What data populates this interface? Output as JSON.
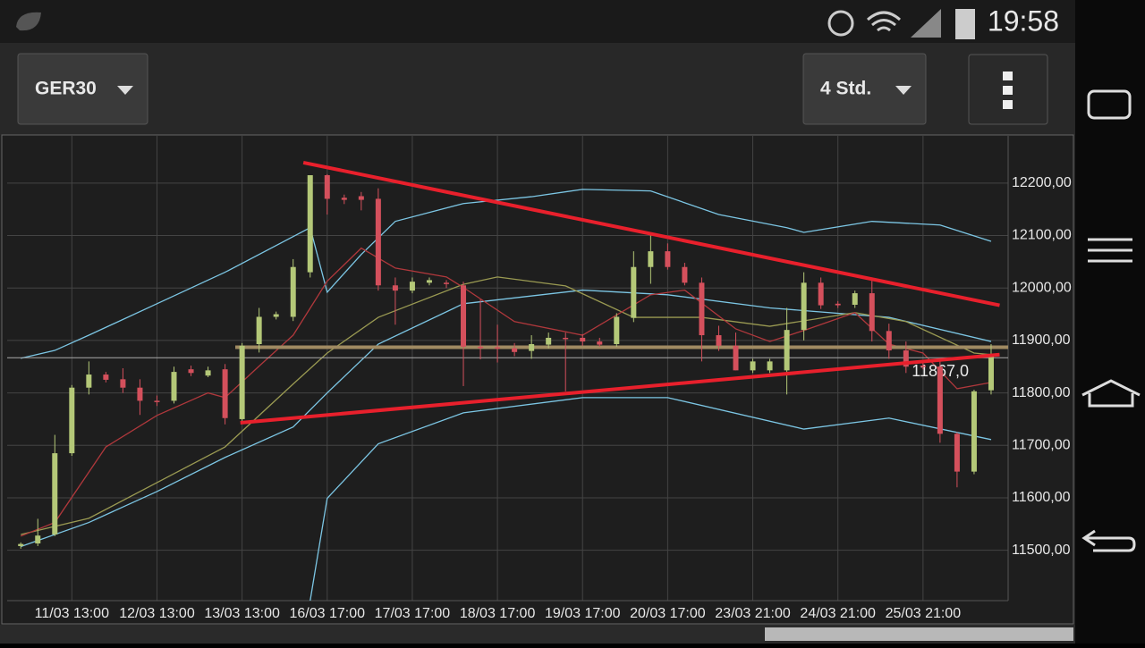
{
  "status_bar": {
    "time": "19:58"
  },
  "toolbar": {
    "symbol": "GER30",
    "timeframe": "4 Std."
  },
  "chart_data": {
    "type": "candlestick",
    "categories": [
      null,
      null,
      null,
      "11/03 13:00",
      null,
      null,
      null,
      null,
      "12/03 13:00",
      null,
      null,
      null,
      null,
      "13/03 13:00",
      null,
      null,
      null,
      null,
      "16/03 17:00",
      null,
      null,
      null,
      null,
      "17/03 17:00",
      null,
      null,
      null,
      null,
      "18/03 17:00",
      null,
      null,
      null,
      null,
      "19/03 17:00",
      null,
      null,
      null,
      null,
      "20/03 17:00",
      null,
      null,
      null,
      null,
      "23/03 21:00",
      null,
      null,
      null,
      null,
      "24/03 21:00",
      null,
      null,
      null,
      null,
      "25/03 21:00",
      null,
      null,
      null,
      null
    ],
    "open": [
      11508,
      11513,
      11530,
      11685,
      11810,
      11835,
      11826,
      11810,
      11785,
      11785,
      11845,
      11833,
      11845,
      11750,
      11893,
      11945,
      11945,
      12030,
      12215,
      12172,
      12175,
      12170,
      12005,
      11995,
      12010,
      12010,
      12005,
      11888,
      11887,
      11885,
      11880,
      11892,
      11905,
      11905,
      11898,
      11893,
      11943,
      12040,
      12070,
      12040,
      12010,
      11910,
      11890,
      11843,
      11843,
      11843,
      11920,
      12010,
      11970,
      11968,
      11990,
      11918,
      11881,
      11852,
      11850,
      11722,
      11650,
      11805
    ],
    "high": [
      11515,
      11560,
      11720,
      11815,
      11860,
      11840,
      11847,
      11826,
      11795,
      11850,
      11852,
      11850,
      11855,
      11895,
      11962,
      11955,
      12055,
      12215,
      12217,
      12178,
      12183,
      12190,
      12020,
      12020,
      12020,
      12015,
      12012,
      11978,
      11930,
      11895,
      11910,
      11915,
      11915,
      11912,
      11905,
      11952,
      12070,
      12105,
      12085,
      12048,
      12020,
      11928,
      11915,
      11865,
      11865,
      11962,
      12030,
      12020,
      11975,
      11995,
      12020,
      11932,
      11898,
      11860,
      11860,
      11725,
      11806,
      11893
    ],
    "low": [
      11503,
      11508,
      11527,
      11680,
      11797,
      11820,
      11800,
      11758,
      11775,
      11780,
      11832,
      11830,
      11740,
      11745,
      11877,
      11940,
      11937,
      12020,
      12140,
      12160,
      12148,
      11995,
      11930,
      11990,
      12005,
      12000,
      11813,
      11864,
      11858,
      11870,
      11865,
      11885,
      11803,
      11890,
      11888,
      11888,
      11935,
      12008,
      12035,
      12005,
      11860,
      11880,
      11843,
      11838,
      11838,
      11797,
      11900,
      11960,
      11962,
      11962,
      11898,
      11865,
      11838,
      11845,
      11705,
      11620,
      11645,
      11797
    ],
    "close": [
      11512,
      11528,
      11685,
      11810,
      11835,
      11825,
      11810,
      11785,
      11783,
      11840,
      11838,
      11843,
      11752,
      11890,
      11945,
      11950,
      12040,
      12215,
      12170,
      12168,
      12168,
      12005,
      11995,
      12012,
      12015,
      12008,
      11888,
      11886,
      11885,
      11878,
      11893,
      11905,
      11903,
      11898,
      11892,
      11945,
      12040,
      12070,
      12040,
      12010,
      11910,
      11890,
      11843,
      11860,
      11860,
      11920,
      12010,
      11967,
      11967,
      11990,
      11918,
      11881,
      11850,
      11850,
      11722,
      11650,
      11803,
      11872
    ],
    "up_color": "#b4c878",
    "down_color": "#d4505c",
    "xlim": [
      -0.8,
      58
    ],
    "xticks": [
      3,
      8,
      13,
      18,
      23,
      28,
      33,
      38,
      43,
      48,
      53
    ],
    "ylim": [
      11404,
      12290
    ],
    "yticks": [
      {
        "value": 11500,
        "label": "11500,00"
      },
      {
        "value": 11600,
        "label": "11600,00"
      },
      {
        "value": 11700,
        "label": "11700,00"
      },
      {
        "value": 11800,
        "label": "11800,00"
      },
      {
        "value": 11900,
        "label": "11900,00"
      },
      {
        "value": 12000,
        "label": "12000,00"
      },
      {
        "value": 12100,
        "label": "12100,00"
      },
      {
        "value": 12200,
        "label": "12200,00"
      }
    ],
    "grid": true,
    "indicators": [
      {
        "color": "#7cc6e4",
        "x": [
          0,
          2,
          4,
          8,
          12,
          16,
          17,
          18,
          20,
          22,
          26,
          30,
          33,
          37,
          41,
          45,
          46,
          50,
          54,
          57
        ],
        "values": [
          11866,
          11881,
          11910,
          11970,
          12030,
          12098,
          12115,
          11992,
          12064,
          12127,
          12161,
          12174,
          12188,
          12185,
          12140,
          12115,
          12106,
          12127,
          12120,
          12089
        ]
      },
      {
        "color": "#7cc6e4",
        "x": [
          0,
          4,
          8,
          12,
          16,
          18,
          21,
          26,
          33,
          38,
          44,
          51,
          57
        ],
        "values": [
          11507,
          11553,
          11612,
          11677,
          11735,
          11800,
          11893,
          11970,
          11996,
          11987,
          11962,
          11944,
          11898
        ]
      },
      {
        "color": "#7cc6e4",
        "x": [
          17,
          18,
          21,
          26,
          33,
          38,
          46,
          51,
          57
        ],
        "values": [
          11404,
          11599,
          11703,
          11762,
          11791,
          11791,
          11731,
          11752,
          11711
        ]
      },
      {
        "color": "#9a9a52",
        "x": [
          0,
          4,
          8,
          12,
          16,
          18,
          21,
          26,
          28,
          32,
          36,
          40,
          44,
          49,
          52,
          56,
          57
        ],
        "values": [
          11530,
          11561,
          11629,
          11697,
          11817,
          11876,
          11944,
          12007,
          12021,
          12004,
          11944,
          11944,
          11927,
          11953,
          11936,
          11876,
          11873
        ]
      },
      {
        "color": "#b0383c",
        "x": [
          0,
          2,
          5,
          8,
          11,
          12,
          14,
          16,
          18,
          20,
          22,
          25,
          26,
          29,
          33,
          37,
          39,
          42,
          44,
          46,
          49,
          51,
          53,
          55,
          57
        ],
        "values": [
          11527,
          11553,
          11697,
          11757,
          11800,
          11791,
          11851,
          11910,
          12013,
          12076,
          12038,
          12021,
          12001,
          11936,
          11910,
          11987,
          11996,
          11922,
          11898,
          11919,
          11953,
          11893,
          11876,
          11808,
          11820
        ]
      }
    ],
    "trendlines": [
      {
        "color": "#e8202c",
        "x": [
          16.6,
          57.5
        ],
        "values": [
          12239,
          11967
        ]
      },
      {
        "color": "#e8202c",
        "x": [
          12.9,
          57.5
        ],
        "values": [
          11743,
          11873
        ]
      }
    ],
    "level": {
      "color": "#a08a62",
      "x": [
        12.6,
        58
      ],
      "value": 11887
    },
    "current_price": 11867,
    "current_price_label": "11867,0"
  }
}
